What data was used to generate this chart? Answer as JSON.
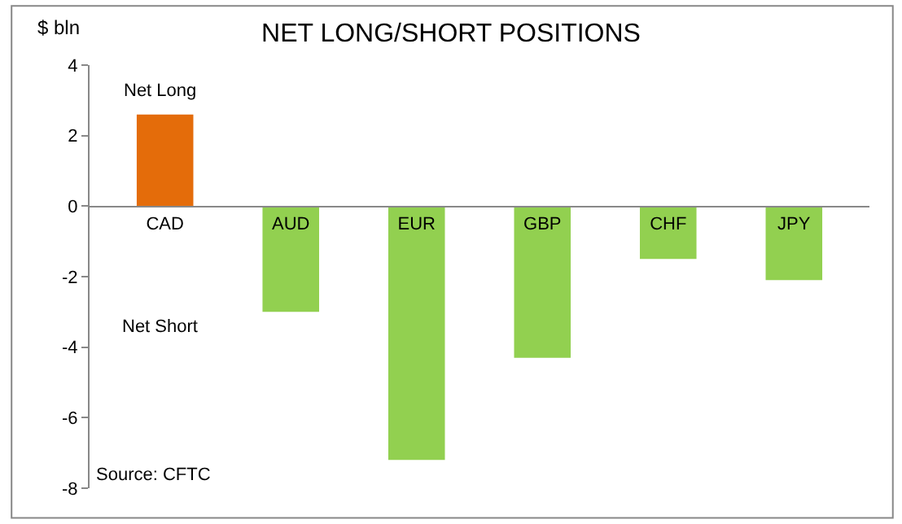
{
  "chart_data": {
    "type": "bar",
    "title": "NET LONG/SHORT POSITIONS",
    "ylabel": "$ bln",
    "categories": [
      "CAD",
      "AUD",
      "EUR",
      "GBP",
      "CHF",
      "JPY"
    ],
    "values": [
      2.6,
      -3.0,
      -7.2,
      -4.3,
      -1.5,
      -2.1
    ],
    "colors": [
      "#e46c0a",
      "#92d050",
      "#92d050",
      "#92d050",
      "#92d050",
      "#92d050"
    ],
    "ylim": [
      -8,
      4
    ],
    "yticks": [
      -8,
      -6,
      -4,
      -2,
      0,
      2,
      4
    ],
    "annotations": [
      "Net Long",
      "Net Short",
      "Source: CFTC"
    ]
  }
}
